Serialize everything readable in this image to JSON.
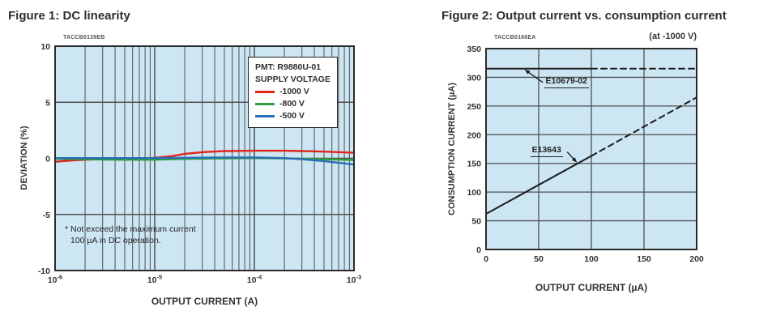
{
  "colors": {
    "plot_background": "#cde6f4",
    "grid": "#4f4f4f",
    "plot_border": "#2b2b2b",
    "text": "#333333"
  },
  "chart_data": [
    {
      "type": "line",
      "title": "Figure 1: DC linearity",
      "code": "TACCB0139EB",
      "xlabel": "OUTPUT CURRENT (A)",
      "ylabel": "DEVIATION (%)",
      "x_scale": "log",
      "xlim": [
        1e-06,
        0.001
      ],
      "ylim": [
        -10,
        10
      ],
      "y_ticks": [
        10,
        5,
        0,
        -5,
        -10
      ],
      "x_ticks": [
        {
          "value": 1e-06,
          "base": "10",
          "exp": "-6"
        },
        {
          "value": 1e-05,
          "base": "10",
          "exp": "-5"
        },
        {
          "value": 0.0001,
          "base": "10",
          "exp": "-4"
        },
        {
          "value": 0.001,
          "base": "10",
          "exp": "-3"
        }
      ],
      "legend": {
        "line1": "PMT: R9880U-01",
        "line2": "SUPPLY VOLTAGE",
        "position": "top-right"
      },
      "note_line1": "* Not exceed the maximum current",
      "note_line2": "100 µA in DC operation.",
      "series": [
        {
          "name": "-1000 V",
          "color": "#e0251b",
          "points": [
            [
              1e-06,
              -0.3
            ],
            [
              1.5e-06,
              -0.18
            ],
            [
              2e-06,
              -0.12
            ],
            [
              4e-06,
              -0.05
            ],
            [
              7e-06,
              -0.02
            ],
            [
              1e-05,
              0.05
            ],
            [
              1.5e-05,
              0.2
            ],
            [
              2e-05,
              0.4
            ],
            [
              3e-05,
              0.55
            ],
            [
              5e-05,
              0.65
            ],
            [
              0.0001,
              0.68
            ],
            [
              0.0002,
              0.68
            ],
            [
              0.0003,
              0.65
            ],
            [
              0.0005,
              0.6
            ],
            [
              0.001,
              0.5
            ]
          ]
        },
        {
          "name": "-800 V",
          "color": "#2f9e3f",
          "points": [
            [
              1e-06,
              -0.05
            ],
            [
              2e-06,
              -0.08
            ],
            [
              4e-06,
              -0.12
            ],
            [
              1e-05,
              -0.12
            ],
            [
              2e-05,
              -0.05
            ],
            [
              5e-05,
              0.0
            ],
            [
              0.0001,
              0.02
            ],
            [
              0.0002,
              0.0
            ],
            [
              0.0005,
              -0.08
            ],
            [
              0.001,
              -0.15
            ]
          ]
        },
        {
          "name": "-500 V",
          "color": "#2a6db8",
          "points": [
            [
              1e-06,
              0.02
            ],
            [
              1e-05,
              0.02
            ],
            [
              5e-05,
              0.08
            ],
            [
              0.0001,
              0.08
            ],
            [
              0.0002,
              0.02
            ],
            [
              0.0003,
              -0.08
            ],
            [
              0.0005,
              -0.25
            ],
            [
              0.001,
              -0.55
            ]
          ]
        }
      ]
    },
    {
      "type": "line",
      "title": "Figure 2: Output current vs. consumption current",
      "code": "TACCB0166EA",
      "condition": "(at -1000 V)",
      "xlabel": "OUTPUT CURRENT (µA)",
      "ylabel": "CONSUMPTION CURRENT (µA)",
      "x_scale": "linear",
      "xlim": [
        0,
        200
      ],
      "ylim": [
        0,
        350
      ],
      "x_ticks": [
        0,
        50,
        100,
        150,
        200
      ],
      "y_ticks": [
        0,
        50,
        100,
        150,
        200,
        250,
        300,
        350
      ],
      "line_color": "#1c1c1c",
      "series": [
        {
          "name": "E10679-02",
          "segments": [
            {
              "style": "solid",
              "points": [
                [
                  0,
                  315
                ],
                [
                  100,
                  315
                ]
              ]
            },
            {
              "style": "dashed",
              "points": [
                [
                  100,
                  315
                ],
                [
                  200,
                  315
                ]
              ]
            }
          ]
        },
        {
          "name": "E13643",
          "segments": [
            {
              "style": "solid",
              "points": [
                [
                  0,
                  62
                ],
                [
                  100,
                  163
                ]
              ]
            },
            {
              "style": "dashed",
              "points": [
                [
                  100,
                  163
                ],
                [
                  200,
                  265
                ]
              ]
            }
          ]
        }
      ],
      "annotations": [
        {
          "text": "E10679-02",
          "label_pos": [
            55,
            300
          ],
          "arrow_from": [
            54,
            291
          ],
          "arrow_to": [
            37,
            313
          ]
        },
        {
          "text": "E13643",
          "label_pos": [
            42,
            180
          ],
          "arrow_from": [
            77,
            170
          ],
          "arrow_to": [
            86,
            152
          ]
        }
      ]
    }
  ]
}
